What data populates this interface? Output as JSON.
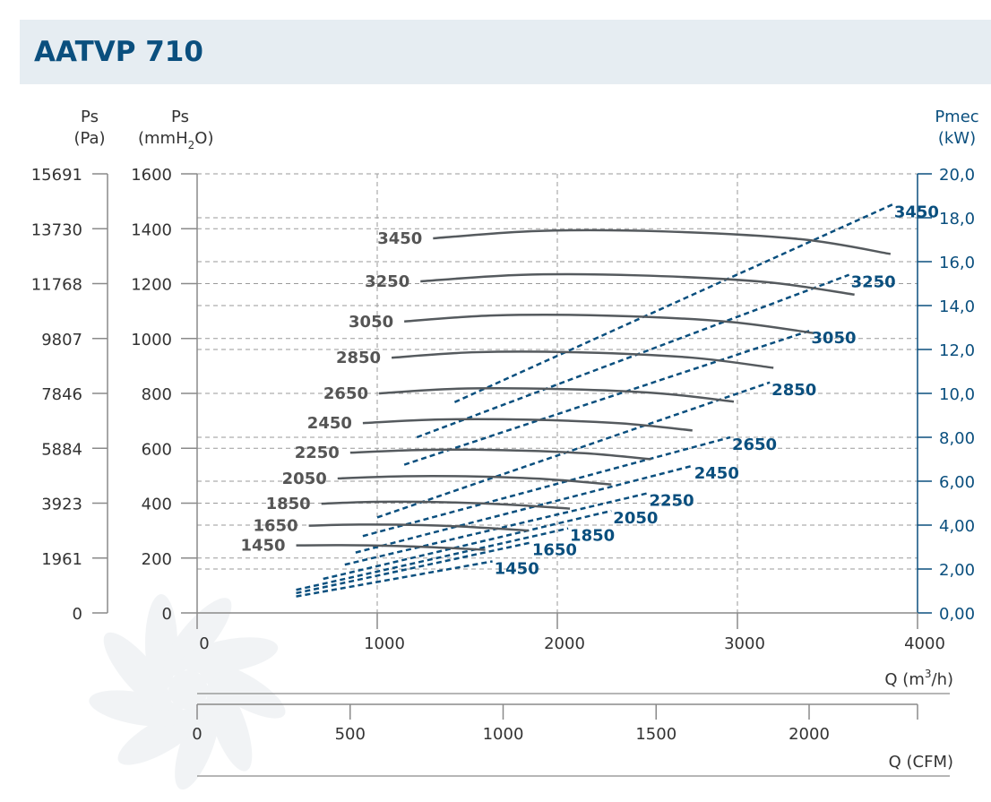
{
  "title": "AATVP 710",
  "colors": {
    "pressure": "#555a5e",
    "power": "#0a4f7e",
    "title_bg": "#e6edf2",
    "grid": "#9a9a9a"
  },
  "axes": {
    "left_pa": {
      "label": "Ps",
      "unit": "(Pa)",
      "ticks": [
        "0",
        "1961",
        "3923",
        "5884",
        "7846",
        "9807",
        "11768",
        "13730",
        "15691"
      ]
    },
    "left_mm": {
      "label": "Ps",
      "unit_main": "(mmH",
      "unit_sub": "2",
      "unit_end": "O)",
      "ticks": [
        "0",
        "200",
        "400",
        "600",
        "800",
        "1000",
        "1200",
        "1400",
        "1600"
      ]
    },
    "right_kw": {
      "label": "Pmec",
      "unit": "(kW)",
      "ticks": [
        "0,00",
        "2,00",
        "4,00",
        "6,00",
        "8,00",
        "10,0",
        "12,0",
        "14,0",
        "16,0",
        "18,0",
        "20,0"
      ]
    },
    "x_m3h": {
      "label_pre": "Q (m",
      "label_sup": "3",
      "label_post": "/h)",
      "ticks": [
        "0",
        "1000",
        "2000",
        "3000",
        "4000"
      ]
    },
    "x_cfm": {
      "label": "Q (CFM)",
      "ticks": [
        "0",
        "500",
        "1000",
        "1500",
        "2000"
      ]
    }
  },
  "chart_data": {
    "type": "line",
    "xlim": [
      0,
      4000
    ],
    "ylim_pressure_mmH2O": [
      0,
      1600
    ],
    "ylim_power_kW": [
      0,
      20
    ],
    "pressure_series": [
      {
        "name": "1450",
        "x": [
          550,
          800,
          1100,
          1350,
          1600
        ],
        "y": [
          246,
          247,
          244,
          238,
          230
        ]
      },
      {
        "name": "1650",
        "x": [
          620,
          900,
          1250,
          1550,
          1840
        ],
        "y": [
          318,
          322,
          320,
          312,
          300
        ]
      },
      {
        "name": "1850",
        "x": [
          690,
          1000,
          1400,
          1750,
          2070
        ],
        "y": [
          398,
          405,
          403,
          394,
          380
        ]
      },
      {
        "name": "2050",
        "x": [
          780,
          1150,
          1550,
          1950,
          2300
        ],
        "y": [
          490,
          498,
          497,
          487,
          468
        ]
      },
      {
        "name": "2250",
        "x": [
          850,
          1250,
          1700,
          2150,
          2520
        ],
        "y": [
          584,
          594,
          593,
          582,
          560
        ]
      },
      {
        "name": "2450",
        "x": [
          920,
          1350,
          1850,
          2350,
          2750
        ],
        "y": [
          692,
          705,
          704,
          691,
          665
        ]
      },
      {
        "name": "2650",
        "x": [
          1010,
          1450,
          2000,
          2550,
          2980
        ],
        "y": [
          800,
          817,
          816,
          801,
          770
        ]
      },
      {
        "name": "2850",
        "x": [
          1080,
          1550,
          2150,
          2750,
          3200
        ],
        "y": [
          930,
          950,
          949,
          930,
          893
        ]
      },
      {
        "name": "3050",
        "x": [
          1150,
          1650,
          2300,
          2950,
          3420
        ],
        "y": [
          1062,
          1084,
          1083,
          1061,
          1020
        ]
      },
      {
        "name": "3250",
        "x": [
          1240,
          1800,
          2450,
          3150,
          3650
        ],
        "y": [
          1208,
          1232,
          1230,
          1206,
          1160
        ]
      },
      {
        "name": "3450",
        "x": [
          1310,
          1900,
          2600,
          3350,
          3850
        ],
        "y": [
          1365,
          1392,
          1390,
          1362,
          1308
        ]
      }
    ],
    "power_series": [
      {
        "name": "1450",
        "x": [
          550,
          1640
        ],
        "y": [
          0.75,
          2.35
        ]
      },
      {
        "name": "1650",
        "x": [
          550,
          1850
        ],
        "y": [
          0.9,
          3.2
        ]
      },
      {
        "name": "1850",
        "x": [
          550,
          2060
        ],
        "y": [
          1.05,
          3.85
        ]
      },
      {
        "name": "2050",
        "x": [
          700,
          2300
        ],
        "y": [
          1.55,
          4.65
        ]
      },
      {
        "name": "2250",
        "x": [
          820,
          2500
        ],
        "y": [
          2.2,
          5.45
        ]
      },
      {
        "name": "2450",
        "x": [
          880,
          2750
        ],
        "y": [
          2.75,
          6.7
        ]
      },
      {
        "name": "2650",
        "x": [
          920,
          2960
        ],
        "y": [
          3.5,
          8.0
        ]
      },
      {
        "name": "2850",
        "x": [
          1000,
          3180
        ],
        "y": [
          4.35,
          10.5
        ]
      },
      {
        "name": "3050",
        "x": [
          1150,
          3400
        ],
        "y": [
          6.75,
          12.85
        ]
      },
      {
        "name": "3250",
        "x": [
          1220,
          3620
        ],
        "y": [
          8.0,
          15.4
        ]
      },
      {
        "name": "3450",
        "x": [
          1430,
          3860
        ],
        "y": [
          9.6,
          18.6
        ]
      }
    ]
  }
}
